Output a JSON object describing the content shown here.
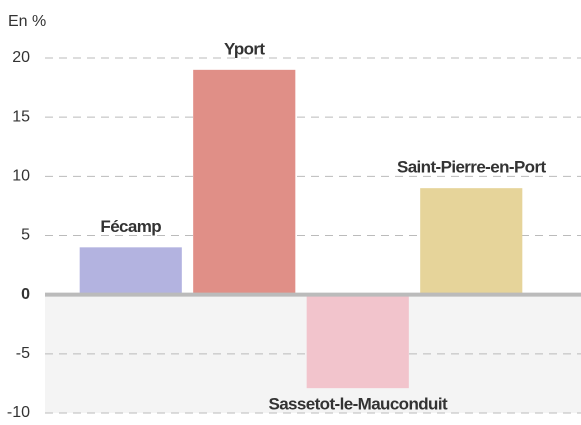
{
  "chart_data": {
    "type": "bar",
    "y_label": "En %",
    "categories": [
      "Fécamp",
      "Yport",
      "Sassetot-le-Mauconduit",
      "Saint-Pierre-en-Port"
    ],
    "values": [
      4,
      19,
      -7.9,
      9
    ],
    "colors": [
      "#b3b3e0",
      "#e08f87",
      "#f2c4cc",
      "#e6d49a"
    ],
    "label_colors": [
      "#a3a8e0",
      "#e0857d",
      "#f0b4bf",
      "#e3cd85"
    ],
    "ylim": [
      -10,
      20
    ],
    "yticks": [
      -10,
      -5,
      0,
      5,
      10,
      15,
      20
    ],
    "grid": true
  }
}
